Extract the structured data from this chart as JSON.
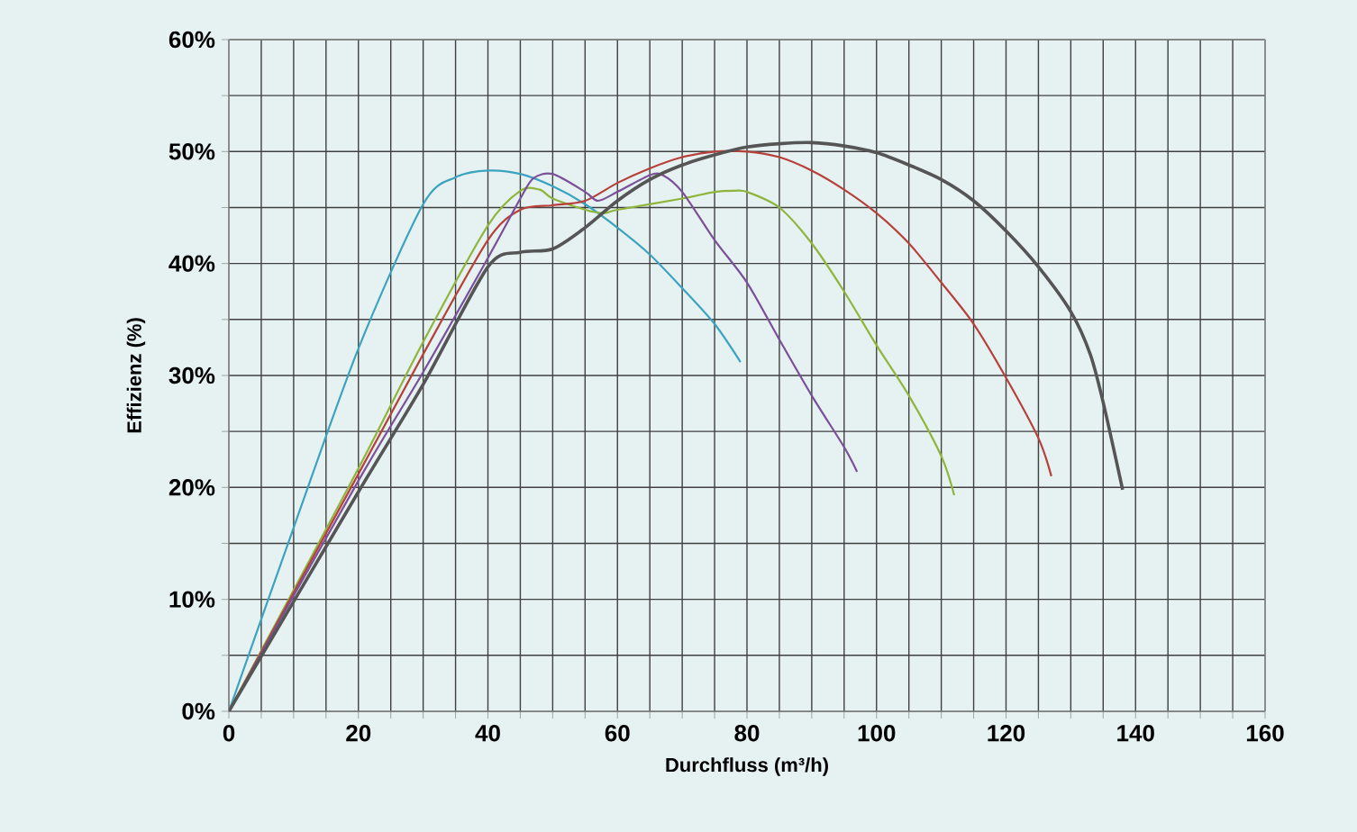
{
  "chart_data": {
    "type": "line",
    "xlabel": "Durchfluss (m³/h)",
    "ylabel": "Effizienz (%)",
    "xlim": [
      0,
      160
    ],
    "ylim": [
      0,
      60
    ],
    "xticks": [
      0,
      {
        "value": 5,
        "label": null
      },
      {
        "value": 10,
        "label": null
      },
      {
        "value": 15,
        "label": null
      },
      20,
      {
        "value": 25,
        "label": null
      },
      {
        "value": 30,
        "label": null
      },
      {
        "value": 35,
        "label": null
      },
      40,
      {
        "value": 45,
        "label": null
      },
      {
        "value": 50,
        "label": null
      },
      {
        "value": 55,
        "label": null
      },
      60,
      {
        "value": 65,
        "label": null
      },
      {
        "value": 70,
        "label": null
      },
      {
        "value": 75,
        "label": null
      },
      80,
      {
        "value": 85,
        "label": null
      },
      {
        "value": 90,
        "label": null
      },
      {
        "value": 95,
        "label": null
      },
      100,
      {
        "value": 105,
        "label": null
      },
      {
        "value": 110,
        "label": null
      },
      {
        "value": 115,
        "label": null
      },
      120,
      {
        "value": 125,
        "label": null
      },
      {
        "value": 130,
        "label": null
      },
      {
        "value": 135,
        "label": null
      },
      140,
      {
        "value": 145,
        "label": null
      },
      {
        "value": 150,
        "label": null
      },
      {
        "value": 155,
        "label": null
      },
      160
    ],
    "yticks": [
      {
        "value": 0,
        "label": "0%"
      },
      {
        "value": 5,
        "label": null
      },
      {
        "value": 10,
        "label": "10%"
      },
      {
        "value": 15,
        "label": null
      },
      {
        "value": 20,
        "label": "20%"
      },
      {
        "value": 25,
        "label": null
      },
      {
        "value": 30,
        "label": "30%"
      },
      {
        "value": 35,
        "label": null
      },
      {
        "value": 40,
        "label": "40%"
      },
      {
        "value": 45,
        "label": null
      },
      {
        "value": 50,
        "label": "50%"
      },
      {
        "value": 55,
        "label": null
      },
      {
        "value": 60,
        "label": "60%"
      }
    ],
    "grid": true,
    "marker": "none",
    "line_style": "solid",
    "series": [
      {
        "color": "#3ba3c0",
        "x": [
          0,
          10,
          20,
          30,
          35,
          40,
          45,
          50,
          55,
          60,
          65,
          70,
          75,
          79
        ],
        "values": [
          0,
          16.4,
          32.4,
          45.3,
          47.7,
          48.3,
          48,
          46.9,
          45.3,
          43.2,
          40.8,
          37.8,
          34.6,
          31.2
        ]
      },
      {
        "color": "#8fb53c",
        "x": [
          0,
          20,
          30,
          40,
          45,
          48,
          50,
          55,
          58,
          60,
          70,
          75,
          78,
          80,
          85,
          90,
          95,
          100,
          105,
          110,
          112
        ],
        "values": [
          0,
          21.7,
          33,
          43.4,
          46.5,
          46.6,
          45.8,
          44.8,
          44.5,
          44.8,
          45.8,
          46.4,
          46.5,
          46.4,
          45,
          41.8,
          37.5,
          32.7,
          28.2,
          22.8,
          19.3
        ]
      },
      {
        "color": "#b8403a",
        "x": [
          0,
          20,
          30,
          40,
          45,
          50,
          55,
          60,
          65,
          70,
          75,
          80,
          85,
          90,
          95,
          100,
          105,
          110,
          115,
          120,
          125,
          127
        ],
        "values": [
          0,
          21.2,
          31.9,
          42.1,
          44.8,
          45.2,
          45.6,
          47.2,
          48.5,
          49.5,
          50,
          50,
          49.5,
          48.3,
          46.6,
          44.5,
          41.8,
          38.3,
          34.6,
          29.8,
          24.4,
          21
        ]
      },
      {
        "color": "#7b4f9a",
        "x": [
          0,
          20,
          30,
          40,
          45,
          47,
          50,
          55,
          57,
          60,
          65,
          67,
          70,
          75,
          80,
          85,
          90,
          95,
          97
        ],
        "values": [
          0,
          20.6,
          30.3,
          40.5,
          45.8,
          47.6,
          48,
          46.4,
          45.6,
          46.4,
          47.9,
          47.9,
          46.4,
          42.1,
          38.3,
          33.2,
          28.2,
          23.6,
          21.4
        ]
      },
      {
        "color": "#555555",
        "x": [
          0,
          20,
          30,
          40,
          45,
          50,
          55,
          60,
          65,
          70,
          75,
          80,
          85,
          90,
          95,
          100,
          105,
          110,
          115,
          120,
          125,
          130,
          133,
          135,
          138
        ],
        "values": [
          0,
          19.6,
          29.2,
          39.7,
          41,
          41.3,
          43.2,
          45.6,
          47.5,
          48.8,
          49.7,
          50.4,
          50.7,
          50.8,
          50.5,
          49.9,
          48.8,
          47.5,
          45.6,
          42.9,
          39.7,
          35.7,
          31.9,
          27.6,
          19.8
        ]
      }
    ]
  }
}
